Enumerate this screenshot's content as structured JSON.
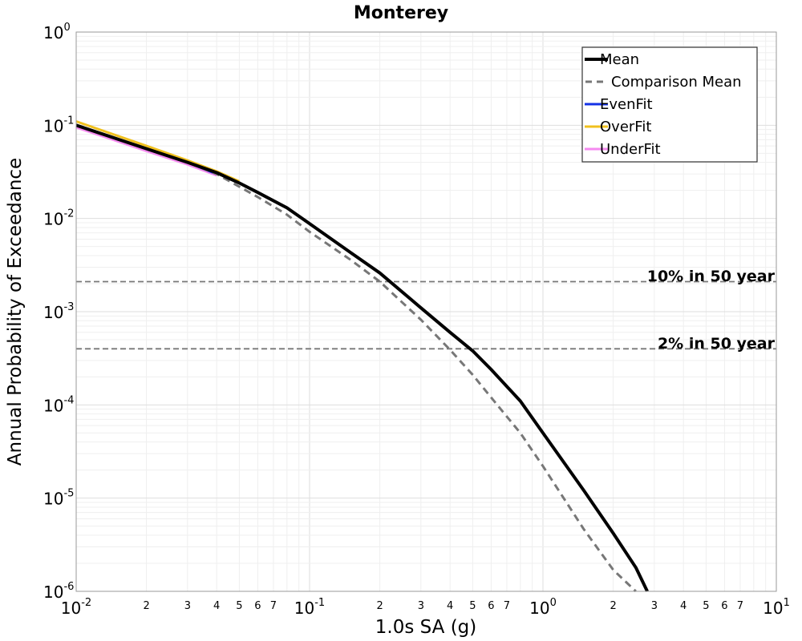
{
  "chart_data": {
    "type": "line",
    "title": "Monterey",
    "xlabel": "1.0s SA (g)",
    "ylabel": "Annual Probability of Exceedance",
    "x_scale": "log",
    "y_scale": "log",
    "xlim": [
      0.01,
      10
    ],
    "ylim": [
      1e-06,
      1
    ],
    "grid": true,
    "legend_position": "top-right",
    "x_major_ticks": [
      {
        "base": "10",
        "exp": "-2"
      },
      {
        "base": "10",
        "exp": "-1"
      },
      {
        "base": "10",
        "exp": "0"
      },
      {
        "base": "10",
        "exp": "1"
      }
    ],
    "y_major_ticks": [
      {
        "base": "10",
        "exp": "0"
      },
      {
        "base": "10",
        "exp": "-1"
      },
      {
        "base": "10",
        "exp": "-2"
      },
      {
        "base": "10",
        "exp": "-3"
      },
      {
        "base": "10",
        "exp": "-4"
      },
      {
        "base": "10",
        "exp": "-5"
      },
      {
        "base": "10",
        "exp": "-6"
      }
    ],
    "x_minor_tick_labels": [
      "2",
      "3",
      "4",
      "5",
      "6",
      "7"
    ],
    "reference_lines": [
      {
        "label": "10% in 50 year",
        "y": 0.0021
      },
      {
        "label": "2% in 50 year",
        "y": 0.0004
      }
    ],
    "series": [
      {
        "name": "UnderFit",
        "color": "#f58af0",
        "style": "solid",
        "x": [
          0.01,
          0.02,
          0.03,
          0.04
        ],
        "y": [
          0.095,
          0.053,
          0.038,
          0.029
        ]
      },
      {
        "name": "EvenFit",
        "color": "#1432e6",
        "style": "solid",
        "x": [
          0.01,
          0.02,
          0.03,
          0.04
        ],
        "y": [
          0.1,
          0.056,
          0.04,
          0.03
        ]
      },
      {
        "name": "OverFit",
        "color": "#f0c01e",
        "style": "solid",
        "x": [
          0.01,
          0.02,
          0.03,
          0.04,
          0.05
        ],
        "y": [
          0.11,
          0.06,
          0.042,
          0.032,
          0.025
        ]
      },
      {
        "name": "Comparison Mean",
        "color": "#777777",
        "style": "dashed",
        "x": [
          0.01,
          0.02,
          0.03,
          0.04,
          0.06,
          0.08,
          0.1,
          0.15,
          0.2,
          0.3,
          0.4,
          0.5,
          0.6,
          0.8,
          1.0,
          1.5,
          2.0,
          2.5
        ],
        "y": [
          0.1,
          0.056,
          0.04,
          0.03,
          0.017,
          0.011,
          0.0072,
          0.0036,
          0.0021,
          0.00082,
          0.00039,
          0.00021,
          0.00012,
          5e-05,
          2.2e-05,
          4.6e-06,
          1.7e-06,
          1e-06
        ]
      },
      {
        "name": "Mean",
        "color": "#000000",
        "style": "solid",
        "x": [
          0.01,
          0.02,
          0.03,
          0.04,
          0.05,
          0.06,
          0.08,
          0.1,
          0.15,
          0.2,
          0.3,
          0.4,
          0.5,
          0.6,
          0.8,
          1.0,
          1.5,
          2.0,
          2.5,
          2.8
        ],
        "y": [
          0.1,
          0.056,
          0.04,
          0.031,
          0.024,
          0.019,
          0.013,
          0.0088,
          0.0043,
          0.0026,
          0.0011,
          0.0006,
          0.00038,
          0.00024,
          0.00011,
          5e-05,
          1.2e-05,
          4.2e-06,
          1.8e-06,
          1e-06
        ]
      }
    ],
    "legend_entries": [
      {
        "name": "Mean",
        "color": "#000000",
        "style": "solid"
      },
      {
        "name": "Comparison Mean",
        "color": "#777777",
        "style": "dashed"
      },
      {
        "name": "EvenFit",
        "color": "#1432e6",
        "style": "solid"
      },
      {
        "name": "OverFit",
        "color": "#f0c01e",
        "style": "solid"
      },
      {
        "name": "UnderFit",
        "color": "#f58af0",
        "style": "solid"
      }
    ]
  }
}
